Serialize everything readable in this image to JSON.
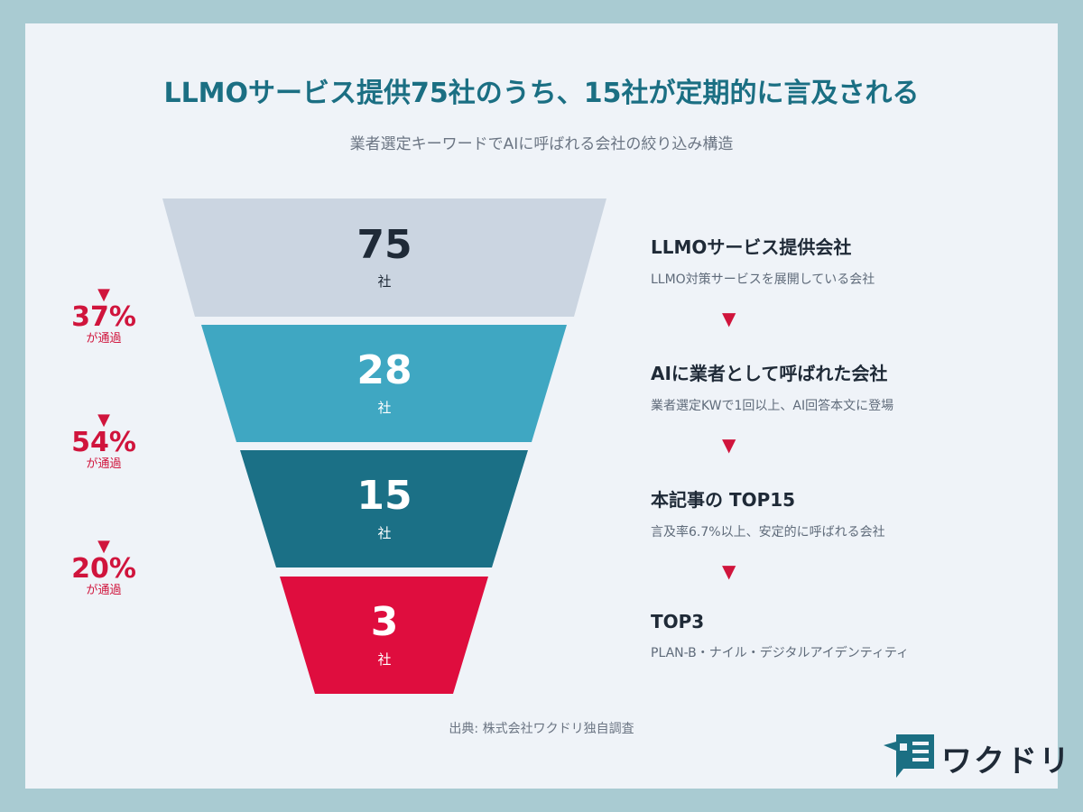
{
  "header": {
    "title": "LLMOサービス提供75社のうち、15社が定期的に言及される",
    "subtitle": "業者選定キーワードでAIに呼ばれる会社の絞り込み構造"
  },
  "funnel": {
    "tiers": [
      {
        "value": "75",
        "unit": "社",
        "color": "#cbd5e1",
        "text_color": "#1f2a37",
        "unit_color": "#1f2a37"
      },
      {
        "value": "28",
        "unit": "社",
        "color": "#3fa7c2",
        "text_color": "#ffffff",
        "unit_color": "#ffffff"
      },
      {
        "value": "15",
        "unit": "社",
        "color": "#1b7086",
        "text_color": "#ffffff",
        "unit_color": "#ffffff"
      },
      {
        "value": "3",
        "unit": "社",
        "color": "#df0d3e",
        "text_color": "#ffffff",
        "unit_color": "#ffffff"
      }
    ]
  },
  "conversion": [
    {
      "marker": "▼",
      "percent": "37%",
      "label": "が通過"
    },
    {
      "marker": "▼",
      "percent": "54%",
      "label": "が通過"
    },
    {
      "marker": "▼",
      "percent": "20%",
      "label": "が通過"
    }
  ],
  "descriptions": [
    {
      "heading": "LLMOサービス提供会社",
      "detail": "LLMO対策サービスを展開している会社"
    },
    {
      "heading": "AIに業者として呼ばれた会社",
      "detail": "業者選定KWで1回以上、AI回答本文に登場"
    },
    {
      "heading": "本記事の TOP15",
      "detail": "言及率6.7%以上、安定的に呼ばれる会社"
    },
    {
      "heading": "TOP3",
      "detail": "PLAN-B・ナイル・デジタルアイデンティティ"
    }
  ],
  "arrows": [
    "▼",
    "▼",
    "▼"
  ],
  "footer": {
    "source": "出典: 株式会社ワクドリ独自調査",
    "logo_text": "ワクドリ"
  },
  "colors": {
    "accent": "#d0143c",
    "title": "#1b6f83",
    "background": "#a9cbd2",
    "card": "#eff3f8"
  }
}
